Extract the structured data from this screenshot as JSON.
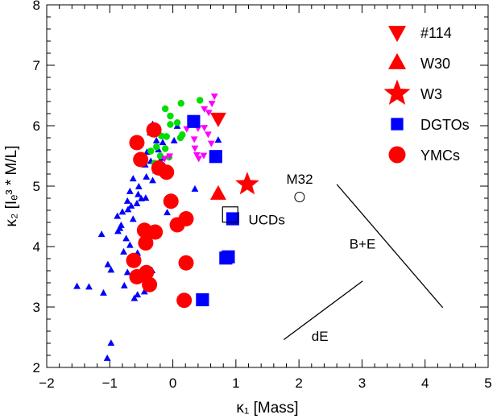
{
  "chart_data": {
    "type": "scatter",
    "title": "",
    "xlabel": "κ₁ [Mass]",
    "ylabel": "κ₂ [Iₑ³ * M/L]",
    "xlim": [
      -2,
      5
    ],
    "ylim": [
      2,
      8
    ],
    "xticks": [
      "-2",
      "-1",
      "0",
      "1",
      "2",
      "3",
      "4",
      "5"
    ],
    "yticks": [
      "2",
      "3",
      "4",
      "5",
      "6",
      "7",
      "8"
    ],
    "grid": false,
    "legend_position": "top-right",
    "legend": [
      {
        "label": "#114",
        "marker": "triangle-down",
        "color": "#ff0000"
      },
      {
        "label": "W30",
        "marker": "triangle-up",
        "color": "#ff0000"
      },
      {
        "label": "W3",
        "marker": "star",
        "color": "#ff0000"
      },
      {
        "label": "DGTOs",
        "marker": "square",
        "color": "#0000ff"
      },
      {
        "label": "YMCs",
        "marker": "circle",
        "color": "#ff0000"
      }
    ],
    "series": [
      {
        "name": "#114",
        "marker": "triangle-down",
        "color": "#ff0000",
        "size": "large",
        "points": [
          [
            0.72,
            6.12
          ]
        ]
      },
      {
        "name": "W30",
        "marker": "triangle-up",
        "color": "#ff0000",
        "size": "large",
        "points": [
          [
            0.72,
            4.87
          ]
        ]
      },
      {
        "name": "W3",
        "marker": "star",
        "color": "#ff0000",
        "size": "large",
        "points": [
          [
            1.18,
            5.03
          ]
        ]
      },
      {
        "name": "DGTOs",
        "marker": "square",
        "color": "#0000ff",
        "size": "large",
        "points": [
          [
            0.33,
            6.07
          ],
          [
            0.68,
            5.49
          ],
          [
            0.95,
            4.46
          ],
          [
            0.88,
            3.83
          ],
          [
            0.84,
            3.81
          ],
          [
            0.47,
            3.12
          ]
        ]
      },
      {
        "name": "YMCs",
        "marker": "circle",
        "color": "#ff0000",
        "size": "large",
        "points": [
          [
            -0.3,
            5.93
          ],
          [
            -0.57,
            5.72
          ],
          [
            -0.51,
            5.44
          ],
          [
            -0.1,
            5.23
          ],
          [
            -0.22,
            5.3
          ],
          [
            -0.03,
            4.75
          ],
          [
            0.21,
            4.46
          ],
          [
            0.07,
            4.36
          ],
          [
            -0.45,
            4.27
          ],
          [
            -0.28,
            4.24
          ],
          [
            -0.43,
            4.06
          ],
          [
            -0.62,
            3.77
          ],
          [
            -0.42,
            3.57
          ],
          [
            -0.57,
            3.5
          ],
          [
            -0.37,
            3.37
          ],
          [
            0.21,
            3.73
          ],
          [
            0.18,
            3.11
          ]
        ]
      },
      {
        "name": "",
        "marker": "triangle-up",
        "color": "#0000ff",
        "size": "small",
        "points": [
          [
            -0.32,
            6.02
          ],
          [
            -0.36,
            5.88
          ],
          [
            -0.26,
            5.75
          ],
          [
            -0.16,
            5.72
          ],
          [
            -0.23,
            5.6
          ],
          [
            -0.41,
            5.56
          ],
          [
            -0.51,
            5.5
          ],
          [
            -0.18,
            5.46
          ],
          [
            -0.35,
            5.41
          ],
          [
            -0.27,
            5.25
          ],
          [
            -0.42,
            5.15
          ],
          [
            -0.32,
            5.09
          ],
          [
            -0.63,
            5.12
          ],
          [
            -0.54,
            4.99
          ],
          [
            -0.68,
            4.91
          ],
          [
            -0.55,
            4.86
          ],
          [
            -0.5,
            4.79
          ],
          [
            -0.43,
            4.8
          ],
          [
            -0.72,
            4.75
          ],
          [
            -0.66,
            4.67
          ],
          [
            -0.8,
            4.57
          ],
          [
            -0.71,
            4.61
          ],
          [
            -0.57,
            4.71
          ],
          [
            -0.88,
            4.5
          ],
          [
            -0.82,
            4.35
          ],
          [
            -0.84,
            4.3
          ],
          [
            -0.87,
            4.25
          ],
          [
            -0.63,
            4.45
          ],
          [
            -1.13,
            4.2
          ],
          [
            -0.74,
            4.13
          ],
          [
            -0.68,
            4.02
          ],
          [
            -0.78,
            3.91
          ],
          [
            -0.56,
            3.89
          ],
          [
            -1.03,
            3.7
          ],
          [
            -0.98,
            3.61
          ],
          [
            -0.72,
            3.57
          ],
          [
            -0.33,
            3.6
          ],
          [
            -0.43,
            3.42
          ],
          [
            -0.77,
            3.35
          ],
          [
            -1.52,
            3.34
          ],
          [
            -1.33,
            3.33
          ],
          [
            -1.1,
            3.23
          ],
          [
            -0.56,
            3.2
          ],
          [
            -0.45,
            3.25
          ],
          [
            -0.61,
            3.14
          ],
          [
            -0.98,
            2.4
          ],
          [
            -1.04,
            2.15
          ],
          [
            0.35,
            4.95
          ],
          [
            0.72,
            5.76
          ],
          [
            0.12,
            5.82
          ],
          [
            0.02,
            5.75
          ],
          [
            -0.44,
            5.35
          ],
          [
            0.07,
            5.99
          ],
          [
            -0.09,
            4.56
          ]
        ]
      },
      {
        "name": "",
        "marker": "circle",
        "color": "#00dd00",
        "size": "small",
        "points": [
          [
            0.13,
            6.37
          ],
          [
            0.43,
            6.42
          ],
          [
            -0.12,
            6.28
          ],
          [
            -0.04,
            6.16
          ],
          [
            -0.04,
            6.02
          ],
          [
            0.07,
            6.05
          ],
          [
            -0.18,
            5.83
          ],
          [
            -0.1,
            5.82
          ],
          [
            0.12,
            5.8
          ],
          [
            -0.26,
            5.65
          ],
          [
            -0.12,
            5.62
          ],
          [
            -0.2,
            5.5
          ],
          [
            -0.29,
            5.38
          ],
          [
            -0.23,
            5.27
          ],
          [
            -0.35,
            5.58
          ],
          [
            -0.06,
            5.48
          ],
          [
            0.15,
            5.85
          ]
        ]
      },
      {
        "name": "",
        "marker": "triangle-down",
        "color": "#ff00ff",
        "size": "small",
        "points": [
          [
            0.66,
            6.49
          ],
          [
            0.62,
            6.37
          ],
          [
            0.5,
            6.28
          ],
          [
            0.57,
            6.22
          ],
          [
            0.71,
            6.15
          ],
          [
            0.5,
            5.97
          ],
          [
            0.4,
            5.96
          ],
          [
            0.56,
            5.86
          ],
          [
            0.34,
            5.78
          ],
          [
            0.61,
            5.71
          ],
          [
            0.35,
            5.63
          ],
          [
            0.49,
            5.51
          ],
          [
            0.38,
            5.52
          ],
          [
            0.41,
            5.46
          ],
          [
            -0.13,
            5.46
          ],
          [
            -0.05,
            5.5
          ],
          [
            0.22,
            5.95
          ]
        ]
      },
      {
        "name": "",
        "marker": "circle-open",
        "color": "#000000",
        "size": "medium",
        "points": [
          [
            2.01,
            4.82
          ]
        ]
      },
      {
        "name": "",
        "marker": "square-open",
        "color": "#000000",
        "size": "large",
        "points": [
          [
            0.91,
            4.53
          ]
        ]
      }
    ],
    "lines": [
      {
        "label": "B+E",
        "points": [
          [
            2.6,
            5.03
          ],
          [
            4.28,
            2.99
          ]
        ]
      },
      {
        "label": "dE",
        "points": [
          [
            1.76,
            2.46
          ],
          [
            3.01,
            3.43
          ]
        ]
      }
    ],
    "annotations": [
      {
        "text": "M32",
        "at": [
          1.8,
          5.12
        ]
      },
      {
        "text": "UCDs",
        "at": [
          1.2,
          4.45
        ]
      },
      {
        "text": "B+E",
        "at": [
          2.8,
          4.05
        ]
      },
      {
        "text": "dE",
        "at": [
          2.2,
          2.52
        ]
      }
    ]
  }
}
